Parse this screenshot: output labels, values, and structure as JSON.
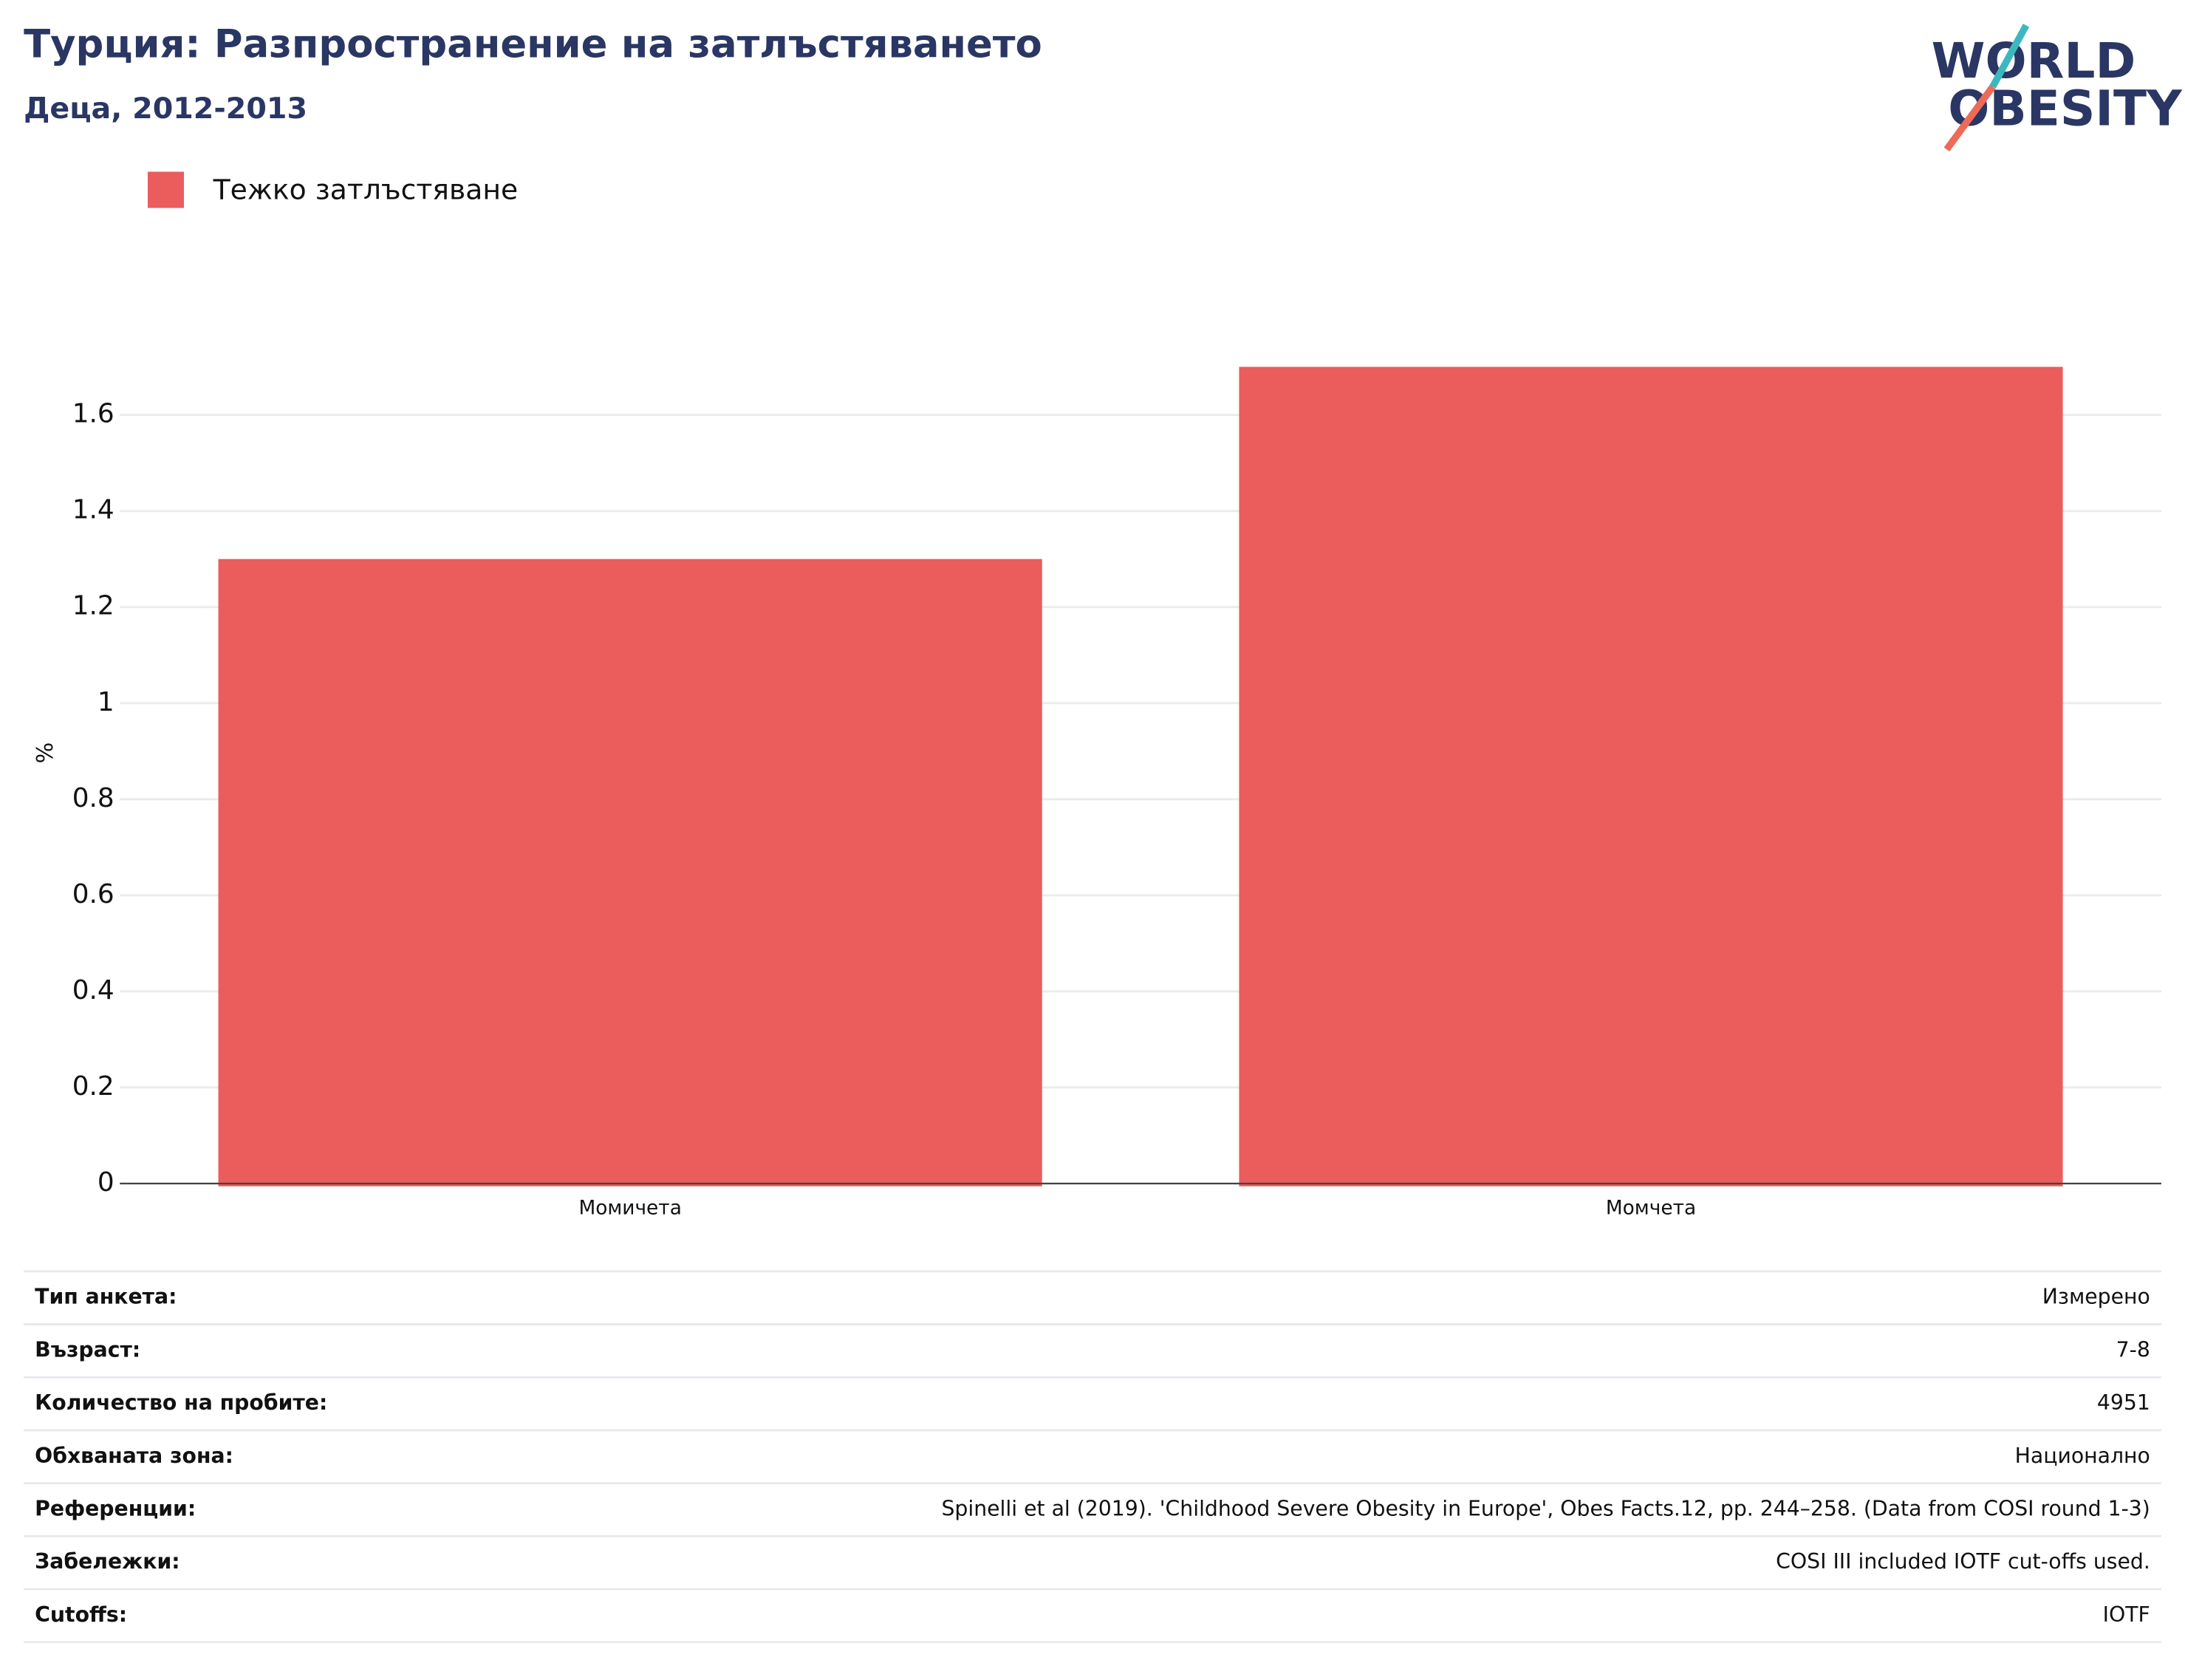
{
  "chart_data": {
    "type": "bar",
    "title": "Турция: Разпространение на затлъстяването",
    "subtitle": "Деца, 2012-2013",
    "y_label": "%",
    "categories": [
      "Момичета",
      "Момчета"
    ],
    "series": [
      {
        "name": "Тежко затлъстяване",
        "color": "#eb5c5c",
        "values": [
          1.3,
          1.7
        ]
      }
    ],
    "ylim": [
      0,
      1.79
    ],
    "yticks": [
      0,
      0.2,
      0.4,
      0.6,
      0.8,
      1,
      1.2,
      1.4,
      1.6
    ],
    "grid": true,
    "legend": "top-left"
  },
  "logo": [
    "WORLD",
    "OBESITY"
  ],
  "table": {
    "rows": [
      [
        "Тип анкета:",
        "Измерено"
      ],
      [
        "Възраст:",
        "7-8"
      ],
      [
        "Количество на пробите:",
        "4951"
      ],
      [
        "Обхваната зона:",
        "Национално"
      ],
      [
        "Референции:",
        "Spinelli et al (2019). 'Childhood Severe Obesity in Europe', Obes Facts.12, pp. 244–258. (Data from COSI round 1-3)"
      ],
      [
        "Забележки:",
        "COSI III included IOTF cut-offs used."
      ],
      [
        "Cutoffs:",
        "IOTF"
      ]
    ]
  }
}
